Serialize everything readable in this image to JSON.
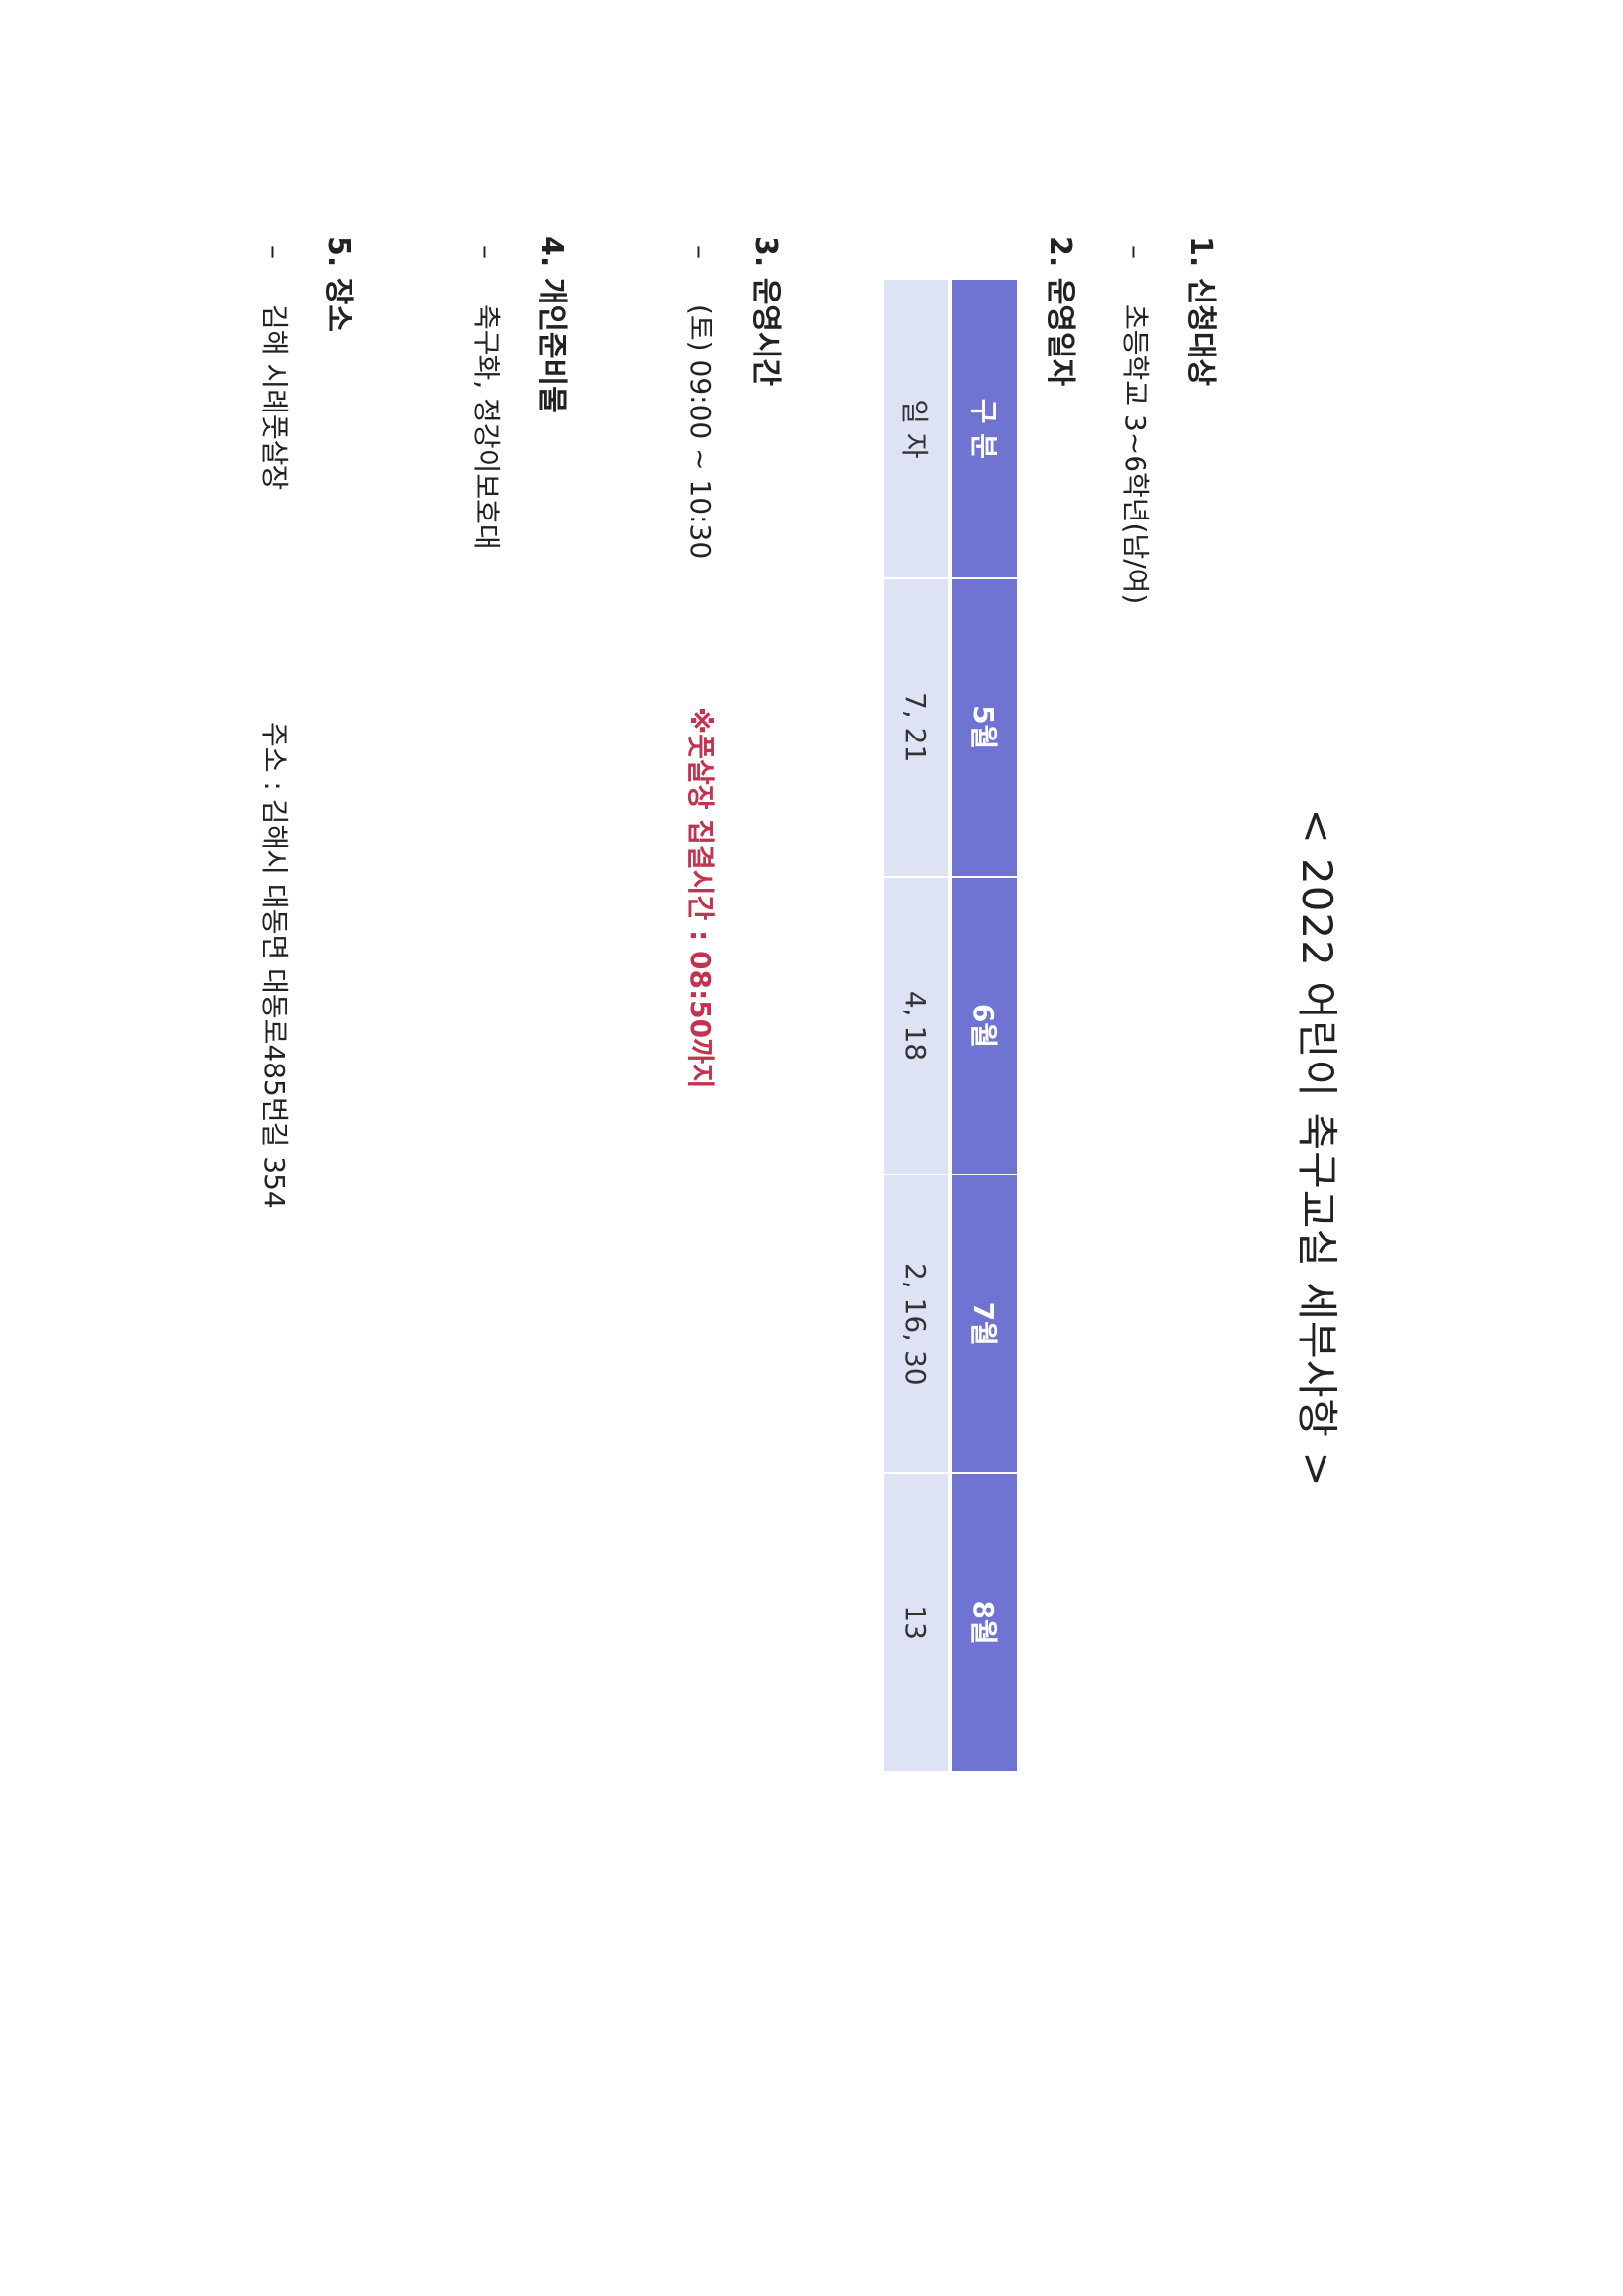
{
  "title": "< 2022 어린이 축구교실 세부사항 >",
  "sections": [
    {
      "number": "1.",
      "heading": "신청대상",
      "item": "초등학교 3~6학년(남/여)"
    },
    {
      "number": "2.",
      "heading": "운영일자"
    },
    {
      "number": "3.",
      "heading": "운영시간",
      "item": "(토) 09:00 ~ 10:30",
      "notice": "※풋살장 집결시간 : 08:50까지"
    },
    {
      "number": "4.",
      "heading": "개인준비물",
      "item": "축구화, 정강이보호대"
    },
    {
      "number": "5.",
      "heading": "장소",
      "item": "김해 시례풋살장",
      "address": "주소 : 김해시 대동면 대동로485번길 354"
    }
  ],
  "dash": "–",
  "schedule": {
    "header": [
      "구 분",
      "5월",
      "6월",
      "7월",
      "8월"
    ],
    "row": [
      "일 자",
      "7, 21",
      "4, 18",
      "2, 16, 30",
      "13"
    ]
  },
  "colors": {
    "header_bg": "#6f73d2",
    "row_bg": "#dde3f4",
    "notice": "#c2334f"
  }
}
